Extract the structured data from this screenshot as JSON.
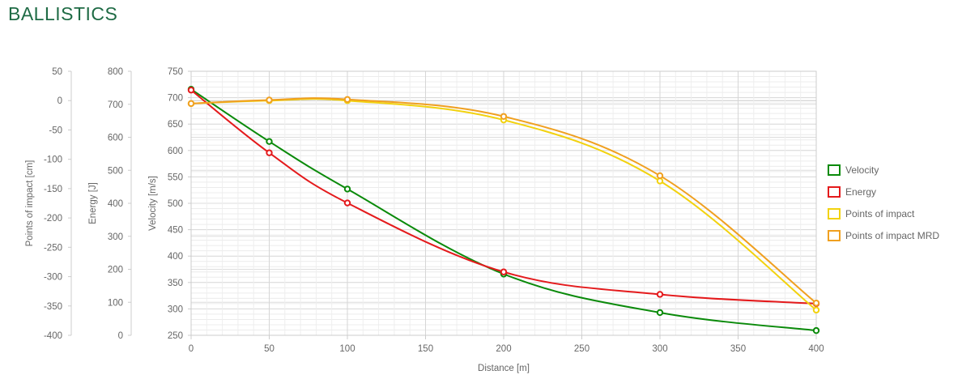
{
  "page": {
    "title": "BALLISTICS"
  },
  "chart_data": {
    "type": "line",
    "xlabel": "Distance [m]",
    "x_ticks": [
      0,
      50,
      100,
      150,
      200,
      250,
      300,
      350,
      400
    ],
    "xlim": [
      0,
      400
    ],
    "grid": true,
    "legend_position": "right",
    "axes": [
      {
        "id": "poi",
        "label": "Points of impact [cm]",
        "ylim": [
          -400,
          50
        ],
        "ticks": [
          50,
          0,
          -50,
          -100,
          -150,
          -200,
          -250,
          -300,
          -350,
          -400
        ]
      },
      {
        "id": "energy",
        "label": "Energy [J]",
        "ylim": [
          0,
          800
        ],
        "ticks": [
          800,
          700,
          600,
          500,
          400,
          300,
          200,
          100,
          0
        ]
      },
      {
        "id": "velocity",
        "label": "Velocity [m/s]",
        "ylim": [
          250,
          750
        ],
        "ticks": [
          750,
          700,
          650,
          600,
          550,
          500,
          450,
          400,
          350,
          300,
          250
        ]
      }
    ],
    "series": [
      {
        "name": "Velocity",
        "axis": "velocity",
        "color": "#0a8a0a",
        "x": [
          0,
          50,
          100,
          200,
          300,
          400
        ],
        "y": [
          716,
          617,
          527,
          366,
          293,
          259
        ]
      },
      {
        "name": "Energy",
        "axis": "energy",
        "color": "#e41a1c",
        "x": [
          0,
          50,
          100,
          200,
          300,
          400
        ],
        "y": [
          743,
          553,
          401,
          192,
          124,
          96
        ]
      },
      {
        "name": "Points of impact",
        "axis": "poi",
        "color": "#f2d20e",
        "x": [
          0,
          50,
          100,
          200,
          300,
          400
        ],
        "y": [
          -5,
          0,
          0,
          -33,
          -137,
          -357
        ]
      },
      {
        "name": "Points of impact MRD",
        "axis": "poi",
        "color": "#f0a020",
        "x": [
          0,
          50,
          100,
          200,
          300,
          400
        ],
        "y": [
          -5,
          1,
          2,
          -27,
          -128,
          -345
        ]
      }
    ]
  }
}
